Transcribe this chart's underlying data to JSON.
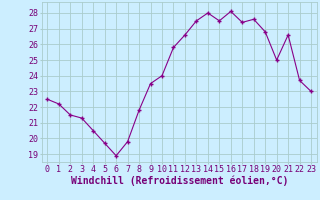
{
  "hours": [
    0,
    1,
    2,
    3,
    4,
    5,
    6,
    7,
    8,
    9,
    10,
    11,
    12,
    13,
    14,
    15,
    16,
    17,
    18,
    19,
    20,
    21,
    22,
    23
  ],
  "values": [
    22.5,
    22.2,
    21.5,
    21.3,
    20.5,
    19.7,
    18.9,
    19.8,
    21.8,
    23.5,
    24.0,
    25.8,
    26.6,
    27.5,
    28.0,
    27.5,
    28.1,
    27.4,
    27.6,
    26.8,
    25.0,
    26.6,
    23.7,
    23.0
  ],
  "line_color": "#880088",
  "marker": "+",
  "bg_color": "#cceeff",
  "grid_color": "#aacccc",
  "xlabel": "Windchill (Refroidissement éolien,°C)",
  "ylim": [
    18.5,
    28.7
  ],
  "yticks": [
    19,
    20,
    21,
    22,
    23,
    24,
    25,
    26,
    27,
    28
  ],
  "xticks": [
    0,
    1,
    2,
    3,
    4,
    5,
    6,
    7,
    8,
    9,
    10,
    11,
    12,
    13,
    14,
    15,
    16,
    17,
    18,
    19,
    20,
    21,
    22,
    23
  ],
  "tick_label_color": "#770077",
  "axis_label_color": "#770077",
  "xlabel_fontsize": 7,
  "tick_fontsize": 6,
  "marker_size": 3,
  "linewidth": 0.8
}
